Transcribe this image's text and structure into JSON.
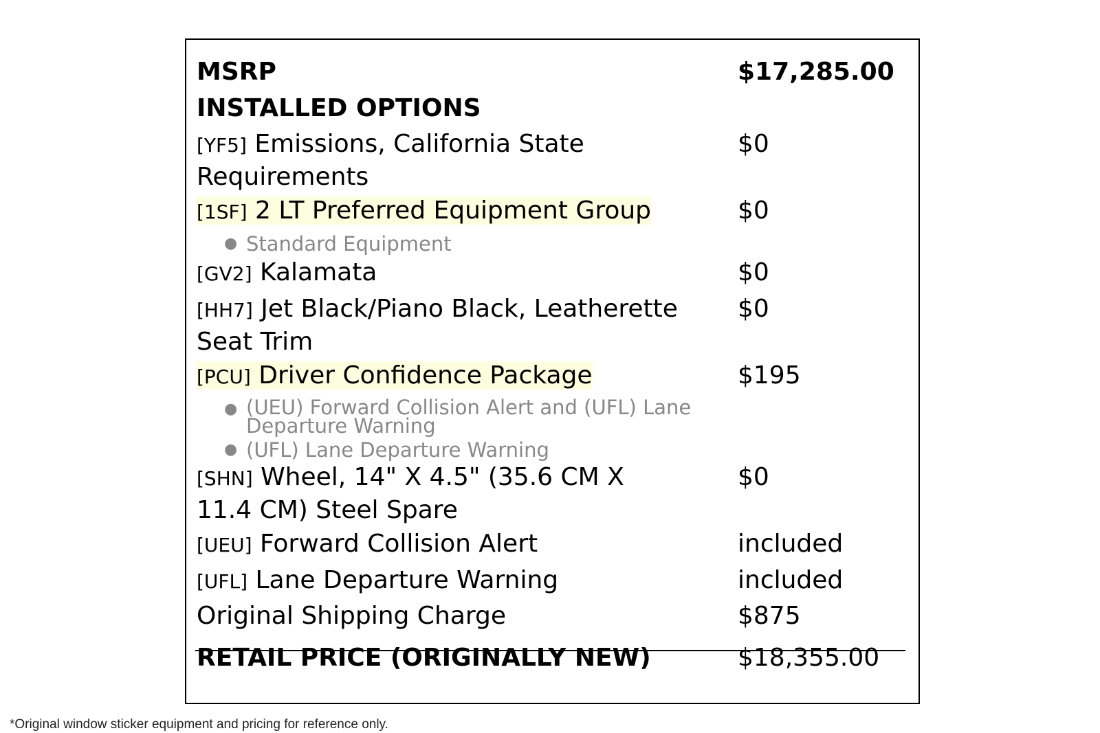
{
  "msrp": {
    "label": "MSRP",
    "value": "$17,285.00"
  },
  "installed_options_label": "INSTALLED OPTIONS",
  "options": [
    {
      "code": "[YF5]",
      "line1": "Emissions, California State",
      "line2": "Requirements",
      "price": "$0"
    },
    {
      "code": "[1SF]",
      "line1": "2 LT Preferred Equipment Group",
      "price": "$0",
      "sub": [
        "Standard Equipment"
      ]
    },
    {
      "code": "[GV2]",
      "line1": "Kalamata",
      "price": "$0"
    },
    {
      "code": "[HH7]",
      "line1": "Jet Black/Piano Black, Leatherette",
      "line2": "Seat Trim",
      "price": "$0"
    },
    {
      "code": "[PCU]",
      "line1": "Driver Confidence Package",
      "price": "$195",
      "sub": [
        "(UEU) Forward Collision Alert and (UFL) Lane Departure Warning",
        "(UFL) Lane Departure Warning"
      ]
    },
    {
      "code": "[SHN]",
      "line1": "Wheel, 14\" X 4.5\" (35.6 CM X",
      "line2": "11.4 CM) Steel Spare",
      "price": "$0"
    },
    {
      "code": "[UEU]",
      "line1": "Forward Collision Alert",
      "price": "included"
    },
    {
      "code": "[UFL]",
      "line1": "Lane Departure Warning",
      "price": "included"
    }
  ],
  "shipping": {
    "label": "Original Shipping Charge",
    "value": "$875"
  },
  "retail": {
    "label": "RETAIL PRICE (ORIGINALLY NEW)",
    "value": "$18,355.00"
  },
  "footnote": "*Original window sticker equipment and pricing for reference only.",
  "bullet": "●",
  "colors": {
    "highlight": "#fdfde0",
    "subtext": "#888888",
    "border": "#000000"
  }
}
